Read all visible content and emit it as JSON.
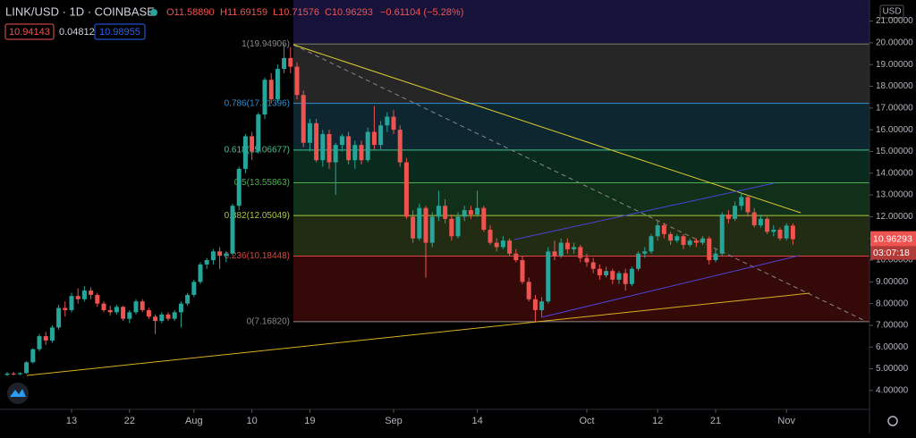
{
  "header": {
    "symbol": "LINK/USD · 1D · COINBASE",
    "ohlc": [
      "O11.58890",
      "H11.69159",
      "L10.71576",
      "C10.96293",
      "−0.61104 (−5.28%)"
    ],
    "indicators": [
      "10.94143",
      "0.04812",
      "10.98955"
    ]
  },
  "countdown": "03:07:18",
  "currency": "USD",
  "chart_data": {
    "type": "candlestick",
    "up_color": "#26a69a",
    "down_color": "#ef5350",
    "candles": [
      [
        4.72,
        4.85,
        4.68,
        4.78
      ],
      [
        4.78,
        4.86,
        4.7,
        4.75
      ],
      [
        4.75,
        4.84,
        4.7,
        4.8
      ],
      [
        4.8,
        5.35,
        4.76,
        5.3
      ],
      [
        5.3,
        5.95,
        5.25,
        5.9
      ],
      [
        5.9,
        6.6,
        5.8,
        6.5
      ],
      [
        6.5,
        6.7,
        6.1,
        6.3
      ],
      [
        6.3,
        7.0,
        6.2,
        6.9
      ],
      [
        6.9,
        7.95,
        6.8,
        7.8
      ],
      [
        7.8,
        8.1,
        7.4,
        7.7
      ],
      [
        7.7,
        8.5,
        7.6,
        8.35
      ],
      [
        8.35,
        8.7,
        8.0,
        8.2
      ],
      [
        8.2,
        8.8,
        8.1,
        8.6
      ],
      [
        8.6,
        8.75,
        8.2,
        8.4
      ],
      [
        8.4,
        8.5,
        7.85,
        8.0
      ],
      [
        8.0,
        8.1,
        7.6,
        7.7
      ],
      [
        7.7,
        7.9,
        7.45,
        7.6
      ],
      [
        7.6,
        7.95,
        7.5,
        7.85
      ],
      [
        7.85,
        7.9,
        7.2,
        7.3
      ],
      [
        7.3,
        7.7,
        7.1,
        7.6
      ],
      [
        7.6,
        8.2,
        7.5,
        8.1
      ],
      [
        8.1,
        8.2,
        7.6,
        7.7
      ],
      [
        7.7,
        7.8,
        7.3,
        7.4
      ],
      [
        7.4,
        7.5,
        6.6,
        7.2
      ],
      [
        7.2,
        7.6,
        7.1,
        7.5
      ],
      [
        7.5,
        7.6,
        7.2,
        7.3
      ],
      [
        7.3,
        7.7,
        7.2,
        7.6
      ],
      [
        7.6,
        8.1,
        6.9,
        8.0
      ],
      [
        8.0,
        8.5,
        7.9,
        8.4
      ],
      [
        8.4,
        9.1,
        8.3,
        9.0
      ],
      [
        9.0,
        9.9,
        8.9,
        9.8
      ],
      [
        9.8,
        10.1,
        9.6,
        10.0
      ],
      [
        10.0,
        10.5,
        9.8,
        10.4
      ],
      [
        10.4,
        10.6,
        9.6,
        10.2
      ],
      [
        10.2,
        10.4,
        9.9,
        10.3
      ],
      [
        10.3,
        12.6,
        10.2,
        12.5
      ],
      [
        12.5,
        14.3,
        12.3,
        14.2
      ],
      [
        14.2,
        15.8,
        14.0,
        15.7
      ],
      [
        15.7,
        15.9,
        14.6,
        15.0
      ],
      [
        15.0,
        16.8,
        14.9,
        16.7
      ],
      [
        16.7,
        18.4,
        16.5,
        18.3
      ],
      [
        18.3,
        18.6,
        17.2,
        17.4
      ],
      [
        17.4,
        19.0,
        17.3,
        18.8
      ],
      [
        18.8,
        19.95,
        18.6,
        19.3
      ],
      [
        19.3,
        19.8,
        18.6,
        18.9
      ],
      [
        18.9,
        19.1,
        17.4,
        17.6
      ],
      [
        17.6,
        17.8,
        15.2,
        15.4
      ],
      [
        15.4,
        16.5,
        15.0,
        16.3
      ],
      [
        16.3,
        16.5,
        14.5,
        14.6
      ],
      [
        14.6,
        16.0,
        14.3,
        15.8
      ],
      [
        15.8,
        16.0,
        14.2,
        14.5
      ],
      [
        14.5,
        15.4,
        13.0,
        15.3
      ],
      [
        15.3,
        15.8,
        15.0,
        15.7
      ],
      [
        15.7,
        15.9,
        14.4,
        14.6
      ],
      [
        14.6,
        15.5,
        14.2,
        15.3
      ],
      [
        15.3,
        15.5,
        14.4,
        14.6
      ],
      [
        14.6,
        16.1,
        14.5,
        15.9
      ],
      [
        15.9,
        17.1,
        15.1,
        15.3
      ],
      [
        15.3,
        16.4,
        15.1,
        16.2
      ],
      [
        16.2,
        16.8,
        15.9,
        16.6
      ],
      [
        16.6,
        16.9,
        15.8,
        16.0
      ],
      [
        16.0,
        16.2,
        14.3,
        14.5
      ],
      [
        14.5,
        14.7,
        11.9,
        12.0
      ],
      [
        12.0,
        12.3,
        10.8,
        11.0
      ],
      [
        11.0,
        12.6,
        10.9,
        12.4
      ],
      [
        12.4,
        12.5,
        9.2,
        10.8
      ],
      [
        10.8,
        12.2,
        10.6,
        12.0
      ],
      [
        12.0,
        13.2,
        11.8,
        12.5
      ],
      [
        12.5,
        12.8,
        11.7,
        11.9
      ],
      [
        11.9,
        12.1,
        10.9,
        11.1
      ],
      [
        11.1,
        12.2,
        11.0,
        12.0
      ],
      [
        12.0,
        12.5,
        11.8,
        12.3
      ],
      [
        12.3,
        12.5,
        11.9,
        12.1
      ],
      [
        12.1,
        13.2,
        12.0,
        12.4
      ],
      [
        12.4,
        12.5,
        11.3,
        11.4
      ],
      [
        11.4,
        11.6,
        10.7,
        10.8
      ],
      [
        10.8,
        11.0,
        10.4,
        10.6
      ],
      [
        10.6,
        11.1,
        10.5,
        10.9
      ],
      [
        10.9,
        11.0,
        10.2,
        10.3
      ],
      [
        10.3,
        10.5,
        9.9,
        10.0
      ],
      [
        10.0,
        10.2,
        8.9,
        9.0
      ],
      [
        9.0,
        9.2,
        8.1,
        8.2
      ],
      [
        8.2,
        8.4,
        7.17,
        7.7
      ],
      [
        7.7,
        8.3,
        7.4,
        8.1
      ],
      [
        8.1,
        10.6,
        8.0,
        10.4
      ],
      [
        10.4,
        10.9,
        10.0,
        10.2
      ],
      [
        10.2,
        11.0,
        10.1,
        10.8
      ],
      [
        10.8,
        11.0,
        10.3,
        10.5
      ],
      [
        10.5,
        10.8,
        10.3,
        10.6
      ],
      [
        10.6,
        10.7,
        9.9,
        10.1
      ],
      [
        10.1,
        10.3,
        9.7,
        9.9
      ],
      [
        9.9,
        10.1,
        9.4,
        9.6
      ],
      [
        9.6,
        9.8,
        9.1,
        9.3
      ],
      [
        9.3,
        9.7,
        9.2,
        9.5
      ],
      [
        9.5,
        9.6,
        8.9,
        9.1
      ],
      [
        9.1,
        9.5,
        8.9,
        9.4
      ],
      [
        9.4,
        9.6,
        8.6,
        8.9
      ],
      [
        8.9,
        9.7,
        8.8,
        9.6
      ],
      [
        9.6,
        10.4,
        9.5,
        10.3
      ],
      [
        10.3,
        10.6,
        10.1,
        10.4
      ],
      [
        10.4,
        11.2,
        10.3,
        11.1
      ],
      [
        11.1,
        11.8,
        10.9,
        11.6
      ],
      [
        11.6,
        11.7,
        11.0,
        11.2
      ],
      [
        11.2,
        11.3,
        10.7,
        10.9
      ],
      [
        10.9,
        11.2,
        10.8,
        11.1
      ],
      [
        11.1,
        11.2,
        10.5,
        10.7
      ],
      [
        10.7,
        11.0,
        10.6,
        10.9
      ],
      [
        10.9,
        11.0,
        10.6,
        10.8
      ],
      [
        10.8,
        11.1,
        10.7,
        11.0
      ],
      [
        11.0,
        11.1,
        9.8,
        10.0
      ],
      [
        10.0,
        10.5,
        9.9,
        10.3
      ],
      [
        10.3,
        12.2,
        10.2,
        12.1
      ],
      [
        12.1,
        12.3,
        11.7,
        11.9
      ],
      [
        11.9,
        12.7,
        11.8,
        12.5
      ],
      [
        12.5,
        13.1,
        12.3,
        12.9
      ],
      [
        12.9,
        13.0,
        12.0,
        12.2
      ],
      [
        12.2,
        12.4,
        11.5,
        11.6
      ],
      [
        11.6,
        12.1,
        11.5,
        11.9
      ],
      [
        11.9,
        12.0,
        11.2,
        11.3
      ],
      [
        11.3,
        11.6,
        11.1,
        11.4
      ],
      [
        11.4,
        11.5,
        10.9,
        11.0
      ],
      [
        11.0,
        11.7,
        10.9,
        11.59
      ],
      [
        11.5889,
        11.69159,
        10.71576,
        10.96293
      ]
    ],
    "xticks": [
      {
        "value": 10,
        "label": "13"
      },
      {
        "value": 19,
        "label": "22"
      },
      {
        "value": 29,
        "label": "Aug"
      },
      {
        "value": 38,
        "label": "10"
      },
      {
        "value": 47,
        "label": "19"
      },
      {
        "value": 60,
        "label": "Sep"
      },
      {
        "value": 73,
        "label": "14"
      },
      {
        "value": 90,
        "label": "Oct"
      },
      {
        "value": 101,
        "label": "12"
      },
      {
        "value": 110,
        "label": "21"
      },
      {
        "value": 121,
        "label": "Nov"
      }
    ],
    "ylim": [
      3.0,
      21.97
    ],
    "yticks": [
      {
        "value": 4,
        "label": "4.00000"
      },
      {
        "value": 5,
        "label": "5.00000"
      },
      {
        "value": 6,
        "label": "6.00000"
      },
      {
        "value": 7,
        "label": "7.00000"
      },
      {
        "value": 8,
        "label": "8.00000"
      },
      {
        "value": 9,
        "label": "9.00000"
      },
      {
        "value": 10,
        "label": "10.00000"
      },
      {
        "value": 11,
        "label": "11.00000"
      },
      {
        "value": 12,
        "label": "12.00000"
      },
      {
        "value": 13,
        "label": "13.00000"
      },
      {
        "value": 14,
        "label": "14.00000"
      },
      {
        "value": 15,
        "label": "15.00000"
      },
      {
        "value": 16,
        "label": "16.00000"
      },
      {
        "value": 17,
        "label": "17.00000"
      },
      {
        "value": 18,
        "label": "18.00000"
      },
      {
        "value": 19,
        "label": "19.00000"
      },
      {
        "value": 20,
        "label": "20.00000"
      },
      {
        "value": 21,
        "label": "21.00000"
      }
    ],
    "fib_levels": [
      {
        "value": 19.94906,
        "label": "1(19.94906)",
        "color": "#8a8a8a",
        "fill": "#262626"
      },
      {
        "value": 17.21396,
        "label": "0.786(17.21396)",
        "color": "#2f8fd0",
        "fill": "#0d2630"
      },
      {
        "value": 15.06677,
        "label": "0.618(15.06677)",
        "color": "#3cc48a",
        "fill": "#0b2a1e"
      },
      {
        "value": 13.55863,
        "label": "0.5(13.55863)",
        "color": "#4caf50",
        "fill": "#10301a"
      },
      {
        "value": 12.05049,
        "label": "0.382(12.05049)",
        "color": "#a8c83c",
        "fill": "#222c12"
      },
      {
        "value": 10.18448,
        "label": "0.236(10.18448)",
        "color": "#e0443a",
        "fill": "#360909"
      },
      {
        "value": 7.1682,
        "label": "0(7.16820)",
        "color": "#8a8a8a"
      }
    ]
  }
}
